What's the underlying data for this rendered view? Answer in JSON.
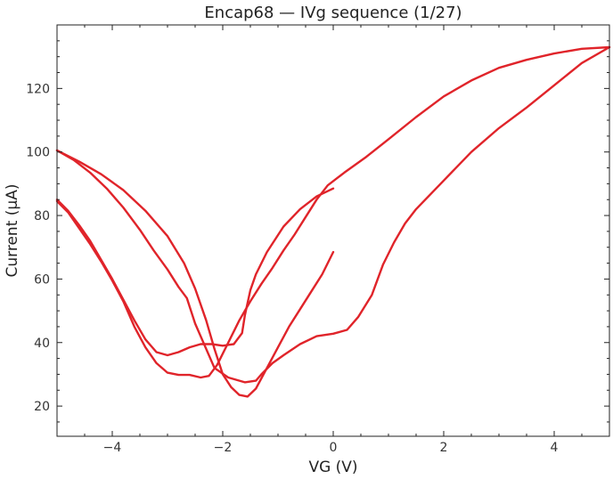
{
  "chart_data": {
    "type": "line",
    "title": "Encap68 — IVg sequence (1/27)",
    "xlabel": "VG (V)",
    "ylabel": "Current (µA)",
    "xlim": [
      -5,
      5
    ],
    "ylim": [
      10.5,
      140
    ],
    "xticks": [
      -4,
      -2,
      0,
      2,
      4
    ],
    "xtick_labels": [
      "−4",
      "−2",
      "0",
      "2",
      "4"
    ],
    "yticks": [
      20,
      40,
      60,
      80,
      100,
      120
    ],
    "ytick_labels": [
      "20",
      "40",
      "60",
      "80",
      "100",
      "120"
    ],
    "grid": false,
    "legend": "none",
    "color": "#e0242a",
    "series": [
      {
        "values": [
          [
            0.0,
            88.5
          ],
          [
            -0.3,
            86.0
          ],
          [
            -0.6,
            82.0
          ],
          [
            -0.9,
            76.5
          ],
          [
            -1.2,
            68.5
          ],
          [
            -1.4,
            61.5
          ],
          [
            -1.5,
            56.5
          ],
          [
            -1.6,
            48.5
          ],
          [
            -1.65,
            43.0
          ],
          [
            -1.8,
            39.5
          ],
          [
            -2.0,
            39.0
          ],
          [
            -2.2,
            39.5
          ],
          [
            -2.4,
            39.5
          ],
          [
            -2.6,
            38.5
          ],
          [
            -2.8,
            37.0
          ],
          [
            -3.0,
            36.0
          ],
          [
            -3.2,
            37.0
          ],
          [
            -3.4,
            41.0
          ],
          [
            -3.6,
            47.0
          ],
          [
            -3.8,
            53.5
          ],
          [
            -4.0,
            60.0
          ],
          [
            -4.2,
            66.0
          ],
          [
            -4.4,
            72.0
          ],
          [
            -4.6,
            77.0
          ],
          [
            -4.8,
            81.5
          ],
          [
            -5.0,
            85.0
          ]
        ]
      },
      {
        "values": [
          [
            -5.0,
            84.5
          ],
          [
            -4.8,
            81.0
          ],
          [
            -4.6,
            76.0
          ],
          [
            -4.4,
            71.0
          ],
          [
            -4.2,
            65.5
          ],
          [
            -4.0,
            59.5
          ],
          [
            -3.8,
            53.0
          ],
          [
            -3.6,
            45.0
          ],
          [
            -3.4,
            38.5
          ],
          [
            -3.2,
            33.5
          ],
          [
            -3.0,
            30.5
          ],
          [
            -2.8,
            29.8
          ],
          [
            -2.6,
            29.8
          ],
          [
            -2.4,
            29.0
          ],
          [
            -2.25,
            29.5
          ],
          [
            -2.1,
            33.0
          ],
          [
            -1.9,
            40.0
          ],
          [
            -1.7,
            47.0
          ],
          [
            -1.5,
            53.0
          ],
          [
            -1.3,
            58.5
          ],
          [
            -1.1,
            63.5
          ],
          [
            -0.9,
            69.0
          ],
          [
            -0.7,
            74.0
          ],
          [
            -0.5,
            79.5
          ],
          [
            -0.3,
            85.0
          ],
          [
            -0.1,
            89.5
          ],
          [
            0.2,
            93.5
          ],
          [
            0.6,
            98.5
          ],
          [
            1.0,
            104.0
          ],
          [
            1.5,
            111.0
          ],
          [
            2.0,
            117.5
          ],
          [
            2.5,
            122.5
          ],
          [
            3.0,
            126.5
          ],
          [
            3.5,
            129.0
          ],
          [
            4.0,
            131.0
          ],
          [
            4.5,
            132.5
          ],
          [
            5.0,
            133.0
          ]
        ]
      },
      {
        "values": [
          [
            5.0,
            133.0
          ],
          [
            4.5,
            128.0
          ],
          [
            4.0,
            121.0
          ],
          [
            3.5,
            114.0
          ],
          [
            3.0,
            107.5
          ],
          [
            2.5,
            100.0
          ],
          [
            2.0,
            91.0
          ],
          [
            1.5,
            82.0
          ],
          [
            1.3,
            77.5
          ],
          [
            1.1,
            71.5
          ],
          [
            0.9,
            64.5
          ],
          [
            0.7,
            55.0
          ],
          [
            0.45,
            48.0
          ],
          [
            0.25,
            44.0
          ],
          [
            0.0,
            42.8
          ],
          [
            -0.3,
            42.0
          ],
          [
            -0.6,
            39.5
          ],
          [
            -0.9,
            36.0
          ],
          [
            -1.1,
            33.5
          ],
          [
            -1.3,
            30.0
          ],
          [
            -1.4,
            28.0
          ],
          [
            -1.6,
            27.5
          ],
          [
            -1.9,
            29.0
          ],
          [
            -2.15,
            32.0
          ],
          [
            -2.3,
            38.0
          ],
          [
            -2.5,
            46.0
          ],
          [
            -2.65,
            54.0
          ],
          [
            -2.8,
            57.5
          ],
          [
            -3.0,
            63.0
          ],
          [
            -3.25,
            69.0
          ],
          [
            -3.5,
            75.5
          ],
          [
            -3.8,
            82.5
          ],
          [
            -4.1,
            88.5
          ],
          [
            -4.4,
            93.5
          ],
          [
            -4.7,
            97.5
          ],
          [
            -5.0,
            100.5
          ]
        ]
      },
      {
        "values": [
          [
            -5.0,
            100.5
          ],
          [
            -4.6,
            97.0
          ],
          [
            -4.2,
            93.0
          ],
          [
            -3.8,
            88.0
          ],
          [
            -3.4,
            81.5
          ],
          [
            -3.0,
            73.5
          ],
          [
            -2.7,
            65.0
          ],
          [
            -2.5,
            57.0
          ],
          [
            -2.3,
            47.0
          ],
          [
            -2.15,
            38.0
          ],
          [
            -2.0,
            30.0
          ],
          [
            -1.85,
            26.0
          ],
          [
            -1.7,
            23.5
          ],
          [
            -1.55,
            23.0
          ],
          [
            -1.4,
            25.5
          ],
          [
            -1.2,
            32.0
          ],
          [
            -1.0,
            38.5
          ],
          [
            -0.8,
            45.0
          ],
          [
            -0.6,
            50.5
          ],
          [
            -0.4,
            56.0
          ],
          [
            -0.2,
            61.5
          ],
          [
            0.0,
            68.5
          ]
        ]
      }
    ]
  }
}
